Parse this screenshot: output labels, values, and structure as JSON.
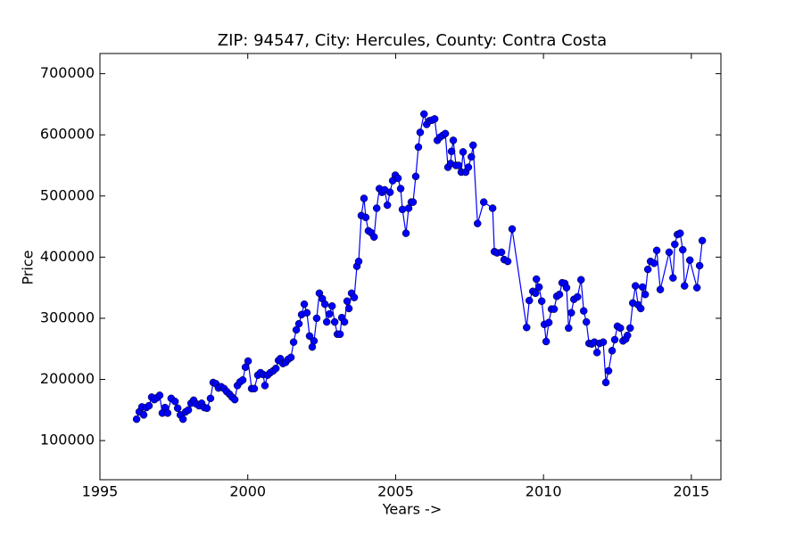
{
  "chart_data": {
    "type": "line",
    "title": "ZIP: 94547, City: Hercules, County: Contra Costa",
    "xlabel": "Years ->",
    "ylabel": "Price",
    "xlim": [
      1995,
      2016
    ],
    "ylim": [
      36000,
      733000
    ],
    "xticks": [
      1995,
      2000,
      2005,
      2010,
      2015
    ],
    "yticks": [
      100000,
      200000,
      300000,
      400000,
      500000,
      600000,
      700000
    ],
    "color": "#0000ff",
    "marker": "o",
    "grid": false,
    "x": [
      1996.24,
      1996.33,
      1996.42,
      1996.48,
      1996.57,
      1996.66,
      1996.75,
      1996.84,
      1996.93,
      1997.02,
      1997.11,
      1997.2,
      1997.29,
      1997.41,
      1997.54,
      1997.63,
      1997.72,
      1997.81,
      1997.9,
      1997.99,
      1998.08,
      1998.17,
      1998.26,
      1998.35,
      1998.44,
      1998.53,
      1998.62,
      1998.74,
      1998.83,
      1998.92,
      1999.01,
      1999.1,
      1999.2,
      1999.29,
      1999.38,
      1999.47,
      1999.56,
      1999.65,
      1999.74,
      1999.83,
      1999.92,
      2000.01,
      2000.13,
      2000.22,
      2000.34,
      2000.43,
      2000.52,
      2000.58,
      2000.67,
      2000.76,
      2000.86,
      2000.95,
      2001.04,
      2001.1,
      2001.19,
      2001.28,
      2001.37,
      2001.46,
      2001.55,
      2001.64,
      2001.73,
      2001.82,
      2001.91,
      2002.0,
      2002.09,
      2002.18,
      2002.24,
      2002.33,
      2002.42,
      2002.52,
      2002.61,
      2002.67,
      2002.76,
      2002.85,
      2002.94,
      2003.03,
      2003.12,
      2003.18,
      2003.27,
      2003.36,
      2003.42,
      2003.51,
      2003.6,
      2003.69,
      2003.75,
      2003.84,
      2003.93,
      2003.99,
      2004.08,
      2004.17,
      2004.27,
      2004.36,
      2004.45,
      2004.54,
      2004.63,
      2004.72,
      2004.81,
      2004.9,
      2004.99,
      2005.08,
      2005.17,
      2005.23,
      2005.35,
      2005.44,
      2005.53,
      2005.59,
      2005.68,
      2005.77,
      2005.83,
      2005.96,
      2006.05,
      2006.14,
      2006.23,
      2006.32,
      2006.41,
      2006.5,
      2006.59,
      2006.68,
      2006.77,
      2006.86,
      2006.89,
      2006.95,
      2007.04,
      2007.13,
      2007.22,
      2007.28,
      2007.37,
      2007.46,
      2007.56,
      2007.62,
      2007.77,
      2007.98,
      2008.28,
      2008.34,
      2008.43,
      2008.58,
      2008.67,
      2008.79,
      2008.94,
      2009.43,
      2009.52,
      2009.64,
      2009.73,
      2009.76,
      2009.85,
      2009.94,
      2010.03,
      2010.09,
      2010.18,
      2010.27,
      2010.36,
      2010.45,
      2010.54,
      2010.63,
      2010.72,
      2010.78,
      2010.85,
      2010.94,
      2011.03,
      2011.15,
      2011.27,
      2011.36,
      2011.45,
      2011.54,
      2011.63,
      2011.72,
      2011.81,
      2011.9,
      2012.02,
      2012.11,
      2012.2,
      2012.32,
      2012.41,
      2012.5,
      2012.6,
      2012.69,
      2012.78,
      2012.84,
      2012.93,
      2013.02,
      2013.11,
      2013.2,
      2013.29,
      2013.35,
      2013.44,
      2013.53,
      2013.62,
      2013.74,
      2013.83,
      2013.95,
      2014.25,
      2014.38,
      2014.44,
      2014.53,
      2014.62,
      2014.71,
      2014.77,
      2014.95,
      2015.19,
      2015.28,
      2015.37
    ],
    "values": [
      135000,
      147000,
      155000,
      142000,
      154000,
      157000,
      171000,
      167000,
      170000,
      174000,
      145000,
      154000,
      145000,
      169000,
      164000,
      153000,
      142000,
      135000,
      147000,
      150000,
      161000,
      166000,
      160000,
      157000,
      161000,
      154000,
      153000,
      169000,
      195000,
      193000,
      186000,
      188000,
      185000,
      180000,
      176000,
      171000,
      167000,
      190000,
      196000,
      199000,
      220000,
      230000,
      185000,
      185000,
      207000,
      211000,
      208000,
      190000,
      207000,
      211000,
      214000,
      218000,
      231000,
      234000,
      226000,
      228000,
      233000,
      236000,
      261000,
      281000,
      291000,
      306000,
      323000,
      309000,
      271000,
      253000,
      263000,
      300000,
      341000,
      332000,
      323000,
      294000,
      307000,
      320000,
      294000,
      274000,
      274000,
      301000,
      294000,
      328000,
      316000,
      341000,
      334000,
      385000,
      393000,
      468000,
      496000,
      465000,
      443000,
      440000,
      433000,
      480000,
      512000,
      506000,
      510000,
      485000,
      506000,
      525000,
      534000,
      529000,
      512000,
      478000,
      439000,
      480000,
      490000,
      490000,
      532000,
      580000,
      604000,
      634000,
      617000,
      623000,
      624000,
      626000,
      591000,
      596000,
      599000,
      602000,
      547000,
      553000,
      573000,
      591000,
      550000,
      550000,
      539000,
      572000,
      539000,
      547000,
      564000,
      583000,
      455000,
      490000,
      480000,
      409000,
      407000,
      408000,
      396000,
      393000,
      446000,
      285000,
      329000,
      344000,
      341000,
      364000,
      351000,
      328000,
      290000,
      262000,
      293000,
      315000,
      315000,
      336000,
      339000,
      358000,
      357000,
      350000,
      284000,
      309000,
      331000,
      335000,
      363000,
      312000,
      294000,
      259000,
      258000,
      261000,
      244000,
      259000,
      261000,
      195000,
      214000,
      247000,
      265000,
      287000,
      284000,
      263000,
      266000,
      272000,
      284000,
      325000,
      353000,
      322000,
      316000,
      351000,
      339000,
      380000,
      393000,
      390000,
      411000,
      347000,
      408000,
      366000,
      421000,
      437000,
      439000,
      412000,
      353000,
      395000,
      350000,
      386000,
      427000
    ]
  }
}
